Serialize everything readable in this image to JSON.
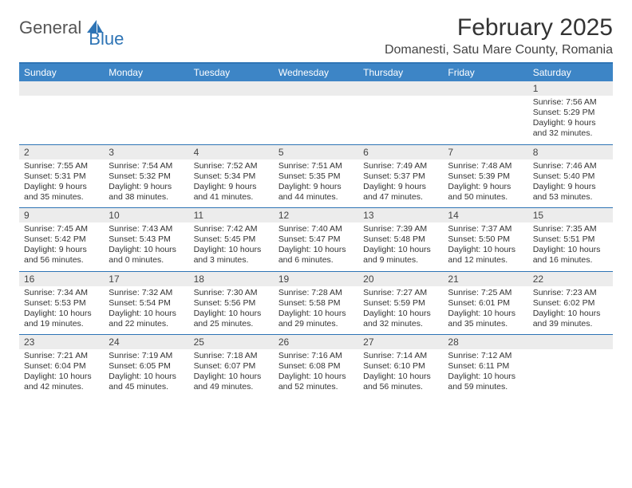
{
  "brand": {
    "part1": "General",
    "part2": "Blue"
  },
  "title": "February 2025",
  "location": "Domanesti, Satu Mare County, Romania",
  "colors": {
    "accent": "#2e74b5",
    "header_bg": "#3d85c6",
    "header_text": "#ffffff",
    "daybar_bg": "#ececec",
    "text": "#333333"
  },
  "weekdays": [
    "Sunday",
    "Monday",
    "Tuesday",
    "Wednesday",
    "Thursday",
    "Friday",
    "Saturday"
  ],
  "weeks": [
    [
      {
        "n": "",
        "sr": "",
        "ss": "",
        "dl": ""
      },
      {
        "n": "",
        "sr": "",
        "ss": "",
        "dl": ""
      },
      {
        "n": "",
        "sr": "",
        "ss": "",
        "dl": ""
      },
      {
        "n": "",
        "sr": "",
        "ss": "",
        "dl": ""
      },
      {
        "n": "",
        "sr": "",
        "ss": "",
        "dl": ""
      },
      {
        "n": "",
        "sr": "",
        "ss": "",
        "dl": ""
      },
      {
        "n": "1",
        "sr": "Sunrise: 7:56 AM",
        "ss": "Sunset: 5:29 PM",
        "dl": "Daylight: 9 hours and 32 minutes."
      }
    ],
    [
      {
        "n": "2",
        "sr": "Sunrise: 7:55 AM",
        "ss": "Sunset: 5:31 PM",
        "dl": "Daylight: 9 hours and 35 minutes."
      },
      {
        "n": "3",
        "sr": "Sunrise: 7:54 AM",
        "ss": "Sunset: 5:32 PM",
        "dl": "Daylight: 9 hours and 38 minutes."
      },
      {
        "n": "4",
        "sr": "Sunrise: 7:52 AM",
        "ss": "Sunset: 5:34 PM",
        "dl": "Daylight: 9 hours and 41 minutes."
      },
      {
        "n": "5",
        "sr": "Sunrise: 7:51 AM",
        "ss": "Sunset: 5:35 PM",
        "dl": "Daylight: 9 hours and 44 minutes."
      },
      {
        "n": "6",
        "sr": "Sunrise: 7:49 AM",
        "ss": "Sunset: 5:37 PM",
        "dl": "Daylight: 9 hours and 47 minutes."
      },
      {
        "n": "7",
        "sr": "Sunrise: 7:48 AM",
        "ss": "Sunset: 5:39 PM",
        "dl": "Daylight: 9 hours and 50 minutes."
      },
      {
        "n": "8",
        "sr": "Sunrise: 7:46 AM",
        "ss": "Sunset: 5:40 PM",
        "dl": "Daylight: 9 hours and 53 minutes."
      }
    ],
    [
      {
        "n": "9",
        "sr": "Sunrise: 7:45 AM",
        "ss": "Sunset: 5:42 PM",
        "dl": "Daylight: 9 hours and 56 minutes."
      },
      {
        "n": "10",
        "sr": "Sunrise: 7:43 AM",
        "ss": "Sunset: 5:43 PM",
        "dl": "Daylight: 10 hours and 0 minutes."
      },
      {
        "n": "11",
        "sr": "Sunrise: 7:42 AM",
        "ss": "Sunset: 5:45 PM",
        "dl": "Daylight: 10 hours and 3 minutes."
      },
      {
        "n": "12",
        "sr": "Sunrise: 7:40 AM",
        "ss": "Sunset: 5:47 PM",
        "dl": "Daylight: 10 hours and 6 minutes."
      },
      {
        "n": "13",
        "sr": "Sunrise: 7:39 AM",
        "ss": "Sunset: 5:48 PM",
        "dl": "Daylight: 10 hours and 9 minutes."
      },
      {
        "n": "14",
        "sr": "Sunrise: 7:37 AM",
        "ss": "Sunset: 5:50 PM",
        "dl": "Daylight: 10 hours and 12 minutes."
      },
      {
        "n": "15",
        "sr": "Sunrise: 7:35 AM",
        "ss": "Sunset: 5:51 PM",
        "dl": "Daylight: 10 hours and 16 minutes."
      }
    ],
    [
      {
        "n": "16",
        "sr": "Sunrise: 7:34 AM",
        "ss": "Sunset: 5:53 PM",
        "dl": "Daylight: 10 hours and 19 minutes."
      },
      {
        "n": "17",
        "sr": "Sunrise: 7:32 AM",
        "ss": "Sunset: 5:54 PM",
        "dl": "Daylight: 10 hours and 22 minutes."
      },
      {
        "n": "18",
        "sr": "Sunrise: 7:30 AM",
        "ss": "Sunset: 5:56 PM",
        "dl": "Daylight: 10 hours and 25 minutes."
      },
      {
        "n": "19",
        "sr": "Sunrise: 7:28 AM",
        "ss": "Sunset: 5:58 PM",
        "dl": "Daylight: 10 hours and 29 minutes."
      },
      {
        "n": "20",
        "sr": "Sunrise: 7:27 AM",
        "ss": "Sunset: 5:59 PM",
        "dl": "Daylight: 10 hours and 32 minutes."
      },
      {
        "n": "21",
        "sr": "Sunrise: 7:25 AM",
        "ss": "Sunset: 6:01 PM",
        "dl": "Daylight: 10 hours and 35 minutes."
      },
      {
        "n": "22",
        "sr": "Sunrise: 7:23 AM",
        "ss": "Sunset: 6:02 PM",
        "dl": "Daylight: 10 hours and 39 minutes."
      }
    ],
    [
      {
        "n": "23",
        "sr": "Sunrise: 7:21 AM",
        "ss": "Sunset: 6:04 PM",
        "dl": "Daylight: 10 hours and 42 minutes."
      },
      {
        "n": "24",
        "sr": "Sunrise: 7:19 AM",
        "ss": "Sunset: 6:05 PM",
        "dl": "Daylight: 10 hours and 45 minutes."
      },
      {
        "n": "25",
        "sr": "Sunrise: 7:18 AM",
        "ss": "Sunset: 6:07 PM",
        "dl": "Daylight: 10 hours and 49 minutes."
      },
      {
        "n": "26",
        "sr": "Sunrise: 7:16 AM",
        "ss": "Sunset: 6:08 PM",
        "dl": "Daylight: 10 hours and 52 minutes."
      },
      {
        "n": "27",
        "sr": "Sunrise: 7:14 AM",
        "ss": "Sunset: 6:10 PM",
        "dl": "Daylight: 10 hours and 56 minutes."
      },
      {
        "n": "28",
        "sr": "Sunrise: 7:12 AM",
        "ss": "Sunset: 6:11 PM",
        "dl": "Daylight: 10 hours and 59 minutes."
      },
      {
        "n": "",
        "sr": "",
        "ss": "",
        "dl": ""
      }
    ]
  ]
}
